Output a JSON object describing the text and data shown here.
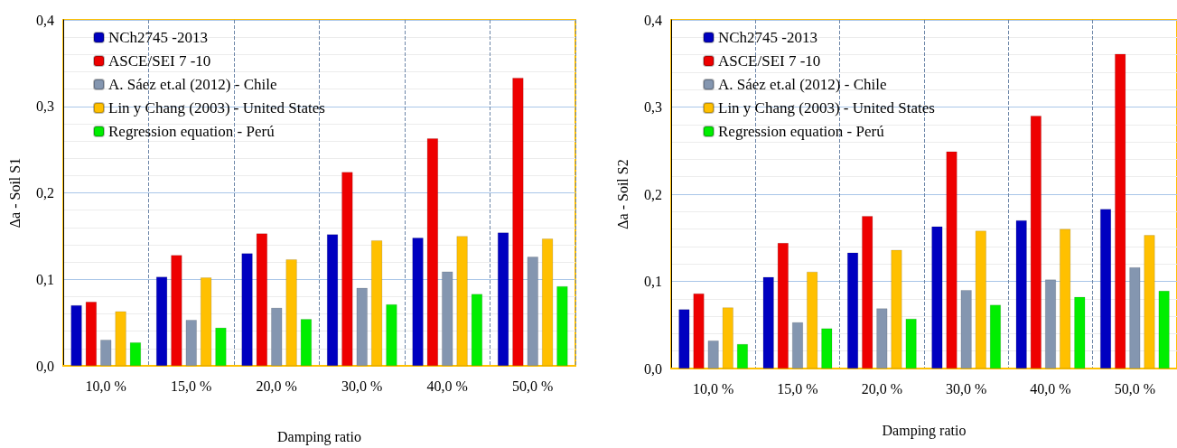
{
  "chart_data": [
    {
      "type": "bar",
      "xlabel": "Damping ratio",
      "ylabel": "Δa - Soil S1",
      "categories": [
        "10,0 %",
        "15,0 %",
        "20,0 %",
        "30,0 %",
        "40,0 %",
        "50,0 %"
      ],
      "series": [
        {
          "name": "NCh2745 -2013",
          "color": "#0000c0",
          "values": [
            0.07,
            0.103,
            0.13,
            0.152,
            0.148,
            0.154
          ]
        },
        {
          "name": "ASCE/SEI 7 -10",
          "color": "#ee0000",
          "values": [
            0.074,
            0.128,
            0.153,
            0.224,
            0.263,
            0.333
          ]
        },
        {
          "name": "A. Sáez et.al (2012) - Chile",
          "color": "#8496b0",
          "values": [
            0.03,
            0.053,
            0.067,
            0.09,
            0.109,
            0.126
          ]
        },
        {
          "name": "Lin y Chang (2003) - United States",
          "color": "#ffc000",
          "values": [
            0.063,
            0.102,
            0.123,
            0.145,
            0.15,
            0.147
          ]
        },
        {
          "name": "Regression equation - Perú",
          "color": "#00ee00",
          "values": [
            0.027,
            0.044,
            0.054,
            0.071,
            0.083,
            0.092
          ]
        }
      ],
      "ylim": [
        0,
        0.4
      ],
      "yticks": [
        {
          "value": 0,
          "label": "0,0"
        },
        {
          "value": 0.1,
          "label": "0,1"
        },
        {
          "value": 0.2,
          "label": "0,2"
        },
        {
          "value": 0.3,
          "label": "0,3"
        },
        {
          "value": 0.4,
          "label": "0,4"
        }
      ],
      "grid": true,
      "legend": "top left"
    },
    {
      "type": "bar",
      "xlabel": "Damping ratio",
      "ylabel": "Δa - Soil S2",
      "categories": [
        "10,0 %",
        "15,0 %",
        "20,0 %",
        "30,0 %",
        "40,0 %",
        "50,0 %"
      ],
      "series": [
        {
          "name": "NCh2745 -2013",
          "color": "#0000c0",
          "values": [
            0.068,
            0.105,
            0.133,
            0.163,
            0.17,
            0.183
          ]
        },
        {
          "name": "ASCE/SEI 7 -10",
          "color": "#ee0000",
          "values": [
            0.086,
            0.144,
            0.175,
            0.249,
            0.29,
            0.361
          ]
        },
        {
          "name": "A. Sáez et.al (2012) - Chile",
          "color": "#8496b0",
          "values": [
            0.032,
            0.053,
            0.069,
            0.09,
            0.102,
            0.116
          ]
        },
        {
          "name": "Lin y Chang (2003) - United States",
          "color": "#ffc000",
          "values": [
            0.07,
            0.111,
            0.136,
            0.158,
            0.16,
            0.153
          ]
        },
        {
          "name": "Regression equation - Perú",
          "color": "#00ee00",
          "values": [
            0.028,
            0.046,
            0.057,
            0.073,
            0.082,
            0.089
          ]
        }
      ],
      "ylim": [
        0,
        0.4
      ],
      "yticks": [
        {
          "value": 0,
          "label": "0,0"
        },
        {
          "value": 0.1,
          "label": "0,1"
        },
        {
          "value": 0.2,
          "label": "0,2"
        },
        {
          "value": 0.3,
          "label": "0,3"
        },
        {
          "value": 0.4,
          "label": "0,4"
        }
      ],
      "grid": true,
      "legend": "top left"
    }
  ]
}
